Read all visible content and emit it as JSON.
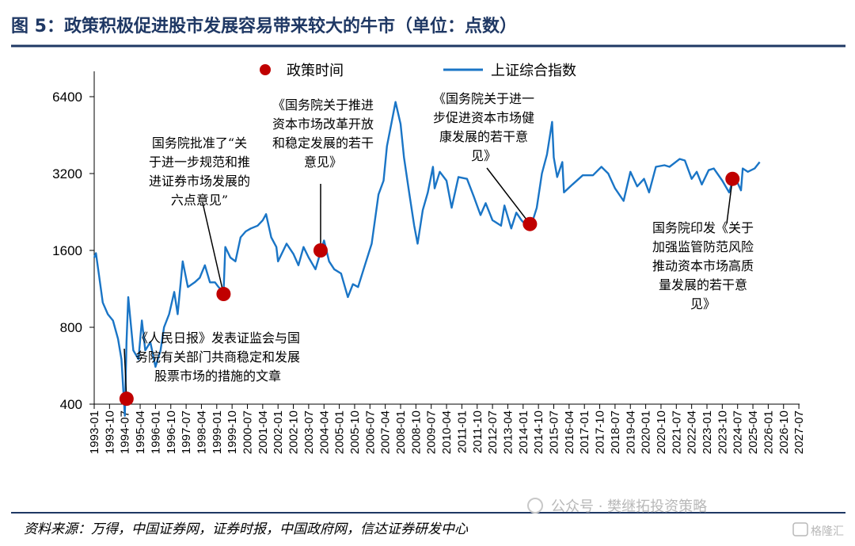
{
  "figure": {
    "title": "图 5：政策积极促进股市发展容易带来较大的牛市（单位：点数）",
    "source": "资料来源：万得，中国证券网，证券时报，中国政府网，信达证券研发中心",
    "watermark": "公众号 · 樊继拓投资策略",
    "watermark_logo": "格隆汇"
  },
  "chart_data": {
    "type": "line",
    "y_scale": "log",
    "ylim": [
      400,
      8000
    ],
    "y_ticks": [
      "6400",
      "3200",
      "1600",
      "800",
      "400"
    ],
    "y_tick_values": [
      6400,
      3200,
      1600,
      800,
      400
    ],
    "x_ticks": [
      "1993-01",
      "1993-10",
      "1994-07",
      "1995-04",
      "1996-01",
      "1996-10",
      "1997-07",
      "1998-04",
      "1999-01",
      "1999-10",
      "2000-07",
      "2001-04",
      "2002-01",
      "2002-10",
      "2003-07",
      "2004-04",
      "2005-01",
      "2005-10",
      "2006-07",
      "2007-04",
      "2008-01",
      "2008-10",
      "2009-07",
      "2010-04",
      "2011-01",
      "2011-10",
      "2012-07",
      "2013-04",
      "2014-01",
      "2014-10",
      "2015-07",
      "2016-04",
      "2017-01",
      "2017-10",
      "2018-07",
      "2019-04",
      "2020-01",
      "2020-10",
      "2021-07",
      "2022-04",
      "2023-01",
      "2023-10",
      "2024-07",
      "2025-04",
      "2026-01",
      "2026-10",
      "2027-07"
    ],
    "x_range": [
      "1993-01",
      "2027-07"
    ],
    "legend": {
      "position": "top",
      "policy_label": "政策时间",
      "index_label": "上证综合指数"
    },
    "colors": {
      "index": "#1a75c6",
      "policy": "#c00000",
      "title": "#1f3864"
    },
    "series": [
      {
        "name": "上证综合指数",
        "points": [
          [
            "1993-01",
            1500
          ],
          [
            "1993-02",
            1560
          ],
          [
            "1993-04",
            1250
          ],
          [
            "1993-06",
            1000
          ],
          [
            "1993-09",
            900
          ],
          [
            "1993-12",
            850
          ],
          [
            "1994-03",
            720
          ],
          [
            "1994-05",
            600
          ],
          [
            "1994-07",
            360
          ],
          [
            "1994-08",
            700
          ],
          [
            "1994-09",
            1050
          ],
          [
            "1994-12",
            650
          ],
          [
            "1995-03",
            600
          ],
          [
            "1995-05",
            850
          ],
          [
            "1995-07",
            650
          ],
          [
            "1995-10",
            700
          ],
          [
            "1996-01",
            560
          ],
          [
            "1996-04",
            650
          ],
          [
            "1996-06",
            800
          ],
          [
            "1996-09",
            900
          ],
          [
            "1996-12",
            1100
          ],
          [
            "1997-02",
            900
          ],
          [
            "1997-05",
            1450
          ],
          [
            "1997-08",
            1150
          ],
          [
            "1997-12",
            1200
          ],
          [
            "1998-03",
            1250
          ],
          [
            "1998-06",
            1400
          ],
          [
            "1998-09",
            1200
          ],
          [
            "1998-12",
            1200
          ],
          [
            "1999-02",
            1150
          ],
          [
            "1999-05",
            1100
          ],
          [
            "1999-06",
            1650
          ],
          [
            "1999-09",
            1500
          ],
          [
            "1999-12",
            1450
          ],
          [
            "2000-03",
            1800
          ],
          [
            "2000-06",
            1900
          ],
          [
            "2000-09",
            1950
          ],
          [
            "2001-01",
            2000
          ],
          [
            "2001-04",
            2100
          ],
          [
            "2001-06",
            2220
          ],
          [
            "2001-09",
            1800
          ],
          [
            "2001-12",
            1650
          ],
          [
            "2002-01",
            1450
          ],
          [
            "2002-06",
            1700
          ],
          [
            "2002-10",
            1550
          ],
          [
            "2003-01",
            1400
          ],
          [
            "2003-04",
            1650
          ],
          [
            "2003-07",
            1500
          ],
          [
            "2003-11",
            1350
          ],
          [
            "2004-04",
            1750
          ],
          [
            "2004-07",
            1450
          ],
          [
            "2004-10",
            1350
          ],
          [
            "2005-02",
            1300
          ],
          [
            "2005-06",
            1050
          ],
          [
            "2005-09",
            1180
          ],
          [
            "2005-12",
            1150
          ],
          [
            "2006-04",
            1400
          ],
          [
            "2006-08",
            1700
          ],
          [
            "2006-12",
            2650
          ],
          [
            "2007-03",
            3000
          ],
          [
            "2007-05",
            4100
          ],
          [
            "2007-08",
            5200
          ],
          [
            "2007-10",
            6100
          ],
          [
            "2008-01",
            5000
          ],
          [
            "2008-03",
            3700
          ],
          [
            "2008-06",
            2700
          ],
          [
            "2008-09",
            2000
          ],
          [
            "2008-11",
            1700
          ],
          [
            "2009-02",
            2300
          ],
          [
            "2009-05",
            2700
          ],
          [
            "2009-08",
            3400
          ],
          [
            "2009-09",
            2800
          ],
          [
            "2009-12",
            3250
          ],
          [
            "2010-04",
            3000
          ],
          [
            "2010-07",
            2350
          ],
          [
            "2010-11",
            3100
          ],
          [
            "2011-04",
            3050
          ],
          [
            "2011-08",
            2600
          ],
          [
            "2011-12",
            2200
          ],
          [
            "2012-03",
            2450
          ],
          [
            "2012-07",
            2100
          ],
          [
            "2012-12",
            2000
          ],
          [
            "2013-02",
            2400
          ],
          [
            "2013-06",
            1950
          ],
          [
            "2013-09",
            2250
          ],
          [
            "2013-12",
            2100
          ],
          [
            "2014-03",
            2000
          ],
          [
            "2014-06",
            2030
          ],
          [
            "2014-09",
            2350
          ],
          [
            "2014-12",
            3200
          ],
          [
            "2015-03",
            3800
          ],
          [
            "2015-06",
            5100
          ],
          [
            "2015-07",
            3700
          ],
          [
            "2015-09",
            3100
          ],
          [
            "2015-12",
            3550
          ],
          [
            "2016-01",
            2700
          ],
          [
            "2016-06",
            2900
          ],
          [
            "2016-12",
            3150
          ],
          [
            "2017-06",
            3150
          ],
          [
            "2017-11",
            3400
          ],
          [
            "2018-03",
            3200
          ],
          [
            "2018-07",
            2800
          ],
          [
            "2018-12",
            2500
          ],
          [
            "2019-04",
            3250
          ],
          [
            "2019-08",
            2850
          ],
          [
            "2019-12",
            3050
          ],
          [
            "2020-03",
            2700
          ],
          [
            "2020-07",
            3400
          ],
          [
            "2020-12",
            3450
          ],
          [
            "2021-03",
            3400
          ],
          [
            "2021-09",
            3650
          ],
          [
            "2021-12",
            3600
          ],
          [
            "2022-04",
            3050
          ],
          [
            "2022-07",
            3250
          ],
          [
            "2022-10",
            2900
          ],
          [
            "2023-02",
            3300
          ],
          [
            "2023-05",
            3350
          ],
          [
            "2023-10",
            3000
          ],
          [
            "2024-02",
            2700
          ],
          [
            "2024-05",
            3150
          ],
          [
            "2024-09",
            2750
          ],
          [
            "2024-10",
            3350
          ],
          [
            "2025-01",
            3250
          ],
          [
            "2025-05",
            3350
          ],
          [
            "2025-08",
            3550
          ]
        ]
      }
    ],
    "policy_points": [
      {
        "date": "1994-08",
        "value": 420,
        "text": [
          "《人民日报》发表证监会与国",
          "务院有关部门共商稳定和发展",
          "股票市场的措施的文章"
        ]
      },
      {
        "date": "1999-05",
        "value": 1080,
        "text": [
          "国务院批准了“关",
          "于进一步规范和推",
          "进证券市场发展的",
          "六点意见”"
        ]
      },
      {
        "date": "2004-02",
        "value": 1600,
        "text": [
          "《国务院关于推进",
          "资本市场改革开放",
          "和稳定发展的若干",
          "意见》"
        ]
      },
      {
        "date": "2014-05",
        "value": 2030,
        "text": [
          "《国务院关于进一",
          "步促进资本市场健",
          "康发展的若干意",
          "见》"
        ]
      },
      {
        "date": "2024-04",
        "value": 3050,
        "text": [
          "国务院印发《关于",
          "加强监管防范风险",
          "推动资本市场高质",
          "量发展的若干意",
          "见》"
        ]
      }
    ]
  }
}
